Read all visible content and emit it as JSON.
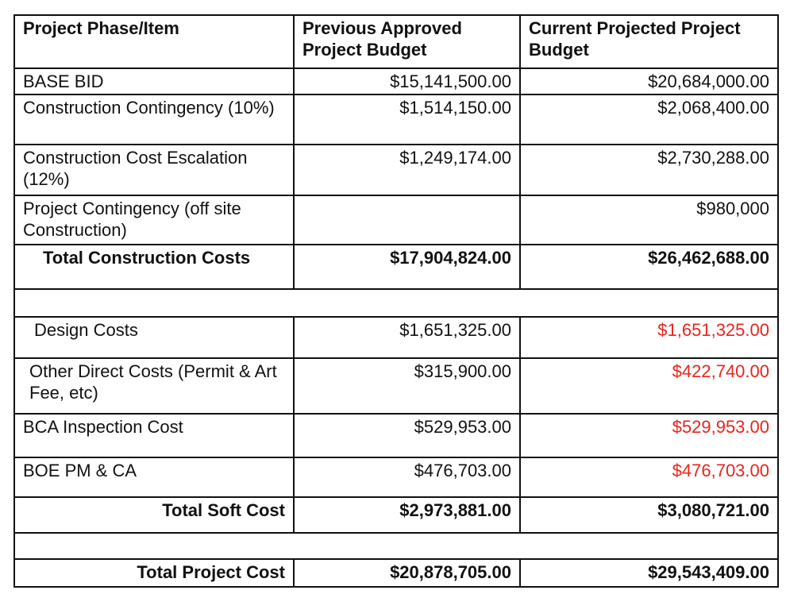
{
  "headers": [
    "Project Phase/Item",
    "Previous Approved Project Budget",
    "Current Projected Project Budget"
  ],
  "construction_rows": [
    {
      "item": "BASE BID",
      "previous": "$15,141,500.00",
      "current": "$20,684,000.00"
    },
    {
      "item": "Construction Contingency (10%)",
      "previous": "$1,514,150.00",
      "current": "$2,068,400.00"
    },
    {
      "item": "Construction Cost Escalation (12%)",
      "previous": "$1,249,174.00",
      "current": "$2,730,288.00"
    },
    {
      "item": "Project Contingency (off site Construction)",
      "previous": "",
      "current": "$980,000"
    }
  ],
  "total_construction": {
    "item": "Total Construction Costs",
    "previous": "$17,904,824.00",
    "current": "$26,462,688.00"
  },
  "soft_rows": [
    {
      "item": "Design Costs",
      "previous": "$1,651,325.00",
      "current": "$1,651,325.00"
    },
    {
      "item": "Other Direct Costs (Permit & Art Fee, etc)",
      "previous": "$315,900.00",
      "current": "$422,740.00"
    },
    {
      "item": "BCA Inspection Cost",
      "previous": "$529,953.00",
      "current": "$529,953.00"
    },
    {
      "item": "BOE PM & CA",
      "previous": "$476,703.00",
      "current": "$476,703.00"
    }
  ],
  "total_soft": {
    "item": "Total Soft Cost",
    "previous": "$2,973,881.00",
    "current": "$3,080,721.00"
  },
  "total_project": {
    "item": "Total Project Cost",
    "previous": "$20,878,705.00",
    "current": "$29,543,409.00"
  },
  "colors": {
    "highlight_red": "#e8251c",
    "text": "#111111"
  }
}
